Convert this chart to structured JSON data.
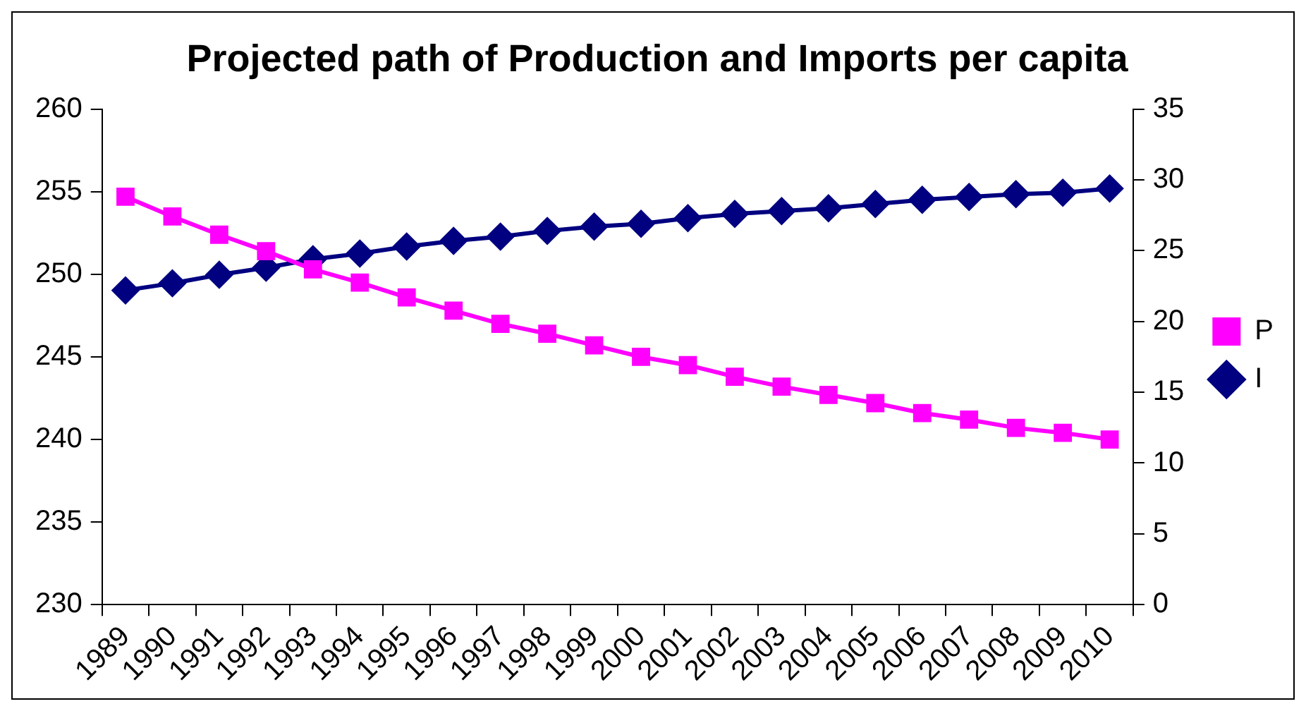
{
  "chart_data": {
    "type": "line",
    "title": "Projected path of Production and Imports per capita",
    "categories": [
      "1989",
      "1990",
      "1991",
      "1992",
      "1993",
      "1994",
      "1995",
      "1996",
      "1997",
      "1998",
      "1999",
      "2000",
      "2001",
      "2002",
      "2003",
      "2004",
      "2005",
      "2006",
      "2007",
      "2008",
      "2009",
      "2010"
    ],
    "series": [
      {
        "name": "P",
        "color": "#ff00ff",
        "marker": "square",
        "values": [
          254.7,
          253.5,
          252.4,
          251.4,
          250.3,
          249.5,
          248.6,
          247.8,
          247.0,
          246.4,
          245.7,
          245.0,
          244.5,
          243.8,
          243.2,
          242.7,
          242.2,
          241.6,
          241.2,
          240.7,
          240.4,
          240.0
        ]
      },
      {
        "name": "I",
        "color": "#000080",
        "marker": "diamond",
        "axis": "y2",
        "values": [
          22.2,
          22.7,
          23.3,
          23.8,
          24.4,
          24.8,
          25.3,
          25.7,
          26.0,
          26.4,
          26.7,
          26.9,
          27.3,
          27.6,
          27.8,
          28.0,
          28.3,
          28.6,
          28.8,
          29.0,
          29.1,
          29.4
        ]
      }
    ],
    "ylim": [
      230,
      260
    ],
    "yticks": [
      230,
      235,
      240,
      245,
      250,
      255,
      260
    ],
    "y2lim": [
      0,
      35
    ],
    "y2ticks": [
      0,
      5,
      10,
      15,
      20,
      25,
      30,
      35
    ],
    "grid": false,
    "legend": "right",
    "line_style": "solid"
  }
}
